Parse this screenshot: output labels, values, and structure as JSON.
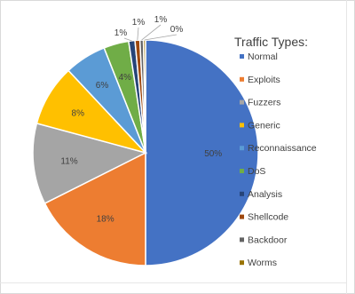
{
  "chart_data": {
    "type": "pie",
    "legend_title": "Traffic Types:",
    "legend_position": "right",
    "categories": [
      "Normal",
      "Exploits",
      "Fuzzers",
      "Generic",
      "Reconnaissance",
      "DoS",
      "Analysis",
      "Shellcode",
      "Backdoor",
      "Worms"
    ],
    "values": [
      50,
      18,
      11,
      8,
      6,
      4,
      1,
      1,
      1,
      0
    ],
    "labels": [
      "50%",
      "18%",
      "11%",
      "8%",
      "6%",
      "4%",
      "1%",
      "1%",
      "1%",
      "0%"
    ],
    "colors": [
      "#4472C4",
      "#ED7D31",
      "#A5A5A5",
      "#FFC000",
      "#5B9BD5",
      "#70AD47",
      "#264478",
      "#9E480E",
      "#636363",
      "#997300"
    ]
  }
}
